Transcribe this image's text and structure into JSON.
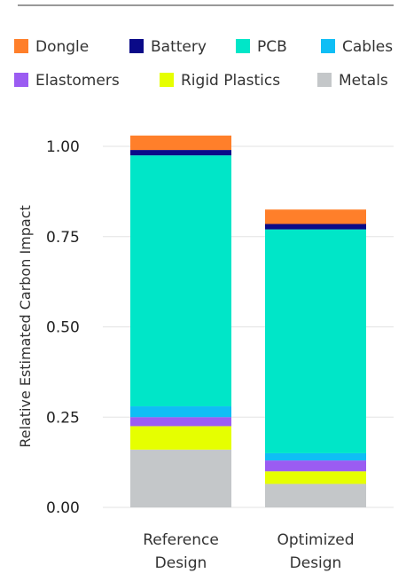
{
  "chart_data": {
    "type": "bar",
    "stacked": true,
    "categories": [
      "Reference Design",
      "Optimized Design"
    ],
    "category_label_lines": [
      [
        "Reference",
        "Design"
      ],
      [
        "Optimized",
        "Design"
      ]
    ],
    "ylabel": "Relative Estimated Carbon Impact",
    "ylim": [
      0,
      1.05
    ],
    "yticks": [
      0.0,
      0.25,
      0.5,
      0.75,
      1.0
    ],
    "ytick_labels": [
      "0.00",
      "0.25",
      "0.50",
      "0.75",
      "1.00"
    ],
    "grid": "horizontal",
    "legend_position": "top",
    "series": [
      {
        "name": "Metals",
        "color": "#c4c7c9",
        "values": [
          0.16,
          0.065
        ]
      },
      {
        "name": "Rigid Plastics",
        "color": "#e6ff00",
        "values": [
          0.065,
          0.035
        ]
      },
      {
        "name": "Elastomers",
        "color": "#9b5cf2",
        "values": [
          0.025,
          0.03
        ]
      },
      {
        "name": "Cables",
        "color": "#0fbef5",
        "values": [
          0.03,
          0.02
        ]
      },
      {
        "name": "PCB",
        "color": "#00e6c8",
        "values": [
          0.695,
          0.62
        ]
      },
      {
        "name": "Battery",
        "color": "#0a0a88",
        "values": [
          0.015,
          0.015
        ]
      },
      {
        "name": "Dongle",
        "color": "#ff7f2a",
        "values": [
          0.04,
          0.04
        ]
      }
    ],
    "legend_order": [
      "Dongle",
      "Battery",
      "PCB",
      "Cables",
      "Elastomers",
      "Rigid Plastics",
      "Metals"
    ]
  }
}
